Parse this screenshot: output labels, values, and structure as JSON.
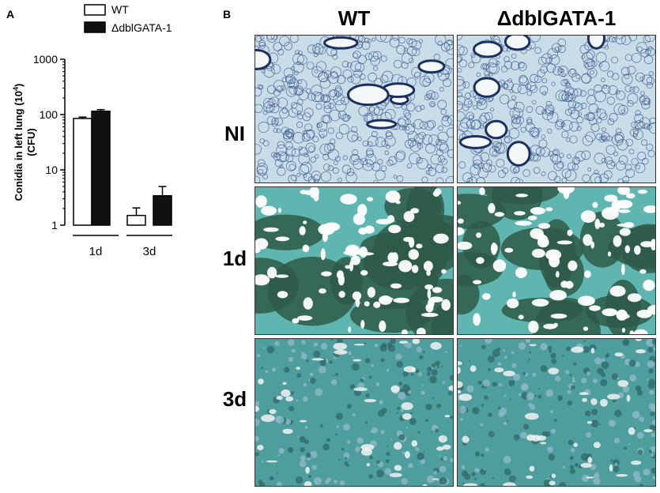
{
  "panel_a_letter": "A",
  "panel_b_letter": "B",
  "chart_data": {
    "type": "bar",
    "categories": [
      "1d",
      "3d"
    ],
    "series": [
      {
        "name": "WT",
        "values": [
          85,
          1.5
        ],
        "errors": [
          5,
          0.55
        ],
        "color": "#ffffff"
      },
      {
        "name": "ΔdblGATA-1",
        "values": [
          115,
          3.4
        ],
        "errors": [
          8,
          1.6
        ],
        "color": "#111111"
      }
    ],
    "title": "",
    "xlabel": "",
    "ylabel_line1": "Conidia in left lung (10",
    "ylabel_sup": "4",
    "ylabel_line1_end": ")",
    "ylabel_line2": "(CFU)",
    "y_scale": "log",
    "ylim": [
      1,
      1000
    ],
    "yticks": [
      {
        "value": 1,
        "label": "1"
      },
      {
        "value": 10,
        "label": "10"
      },
      {
        "value": 100,
        "label": "100"
      },
      {
        "value": 1000,
        "label": "1000"
      }
    ],
    "legend_position": "top",
    "grid": false
  },
  "micrograph_panel": {
    "columns": [
      "WT",
      "ΔdblGATA-1"
    ],
    "rows": [
      "NI",
      "1d",
      "3d"
    ]
  },
  "colors": {
    "ni_background": "#c9dde8",
    "ni_tissue": "#3a5a8c",
    "infected_tissue": "#2e5a48",
    "infected_cyan": "#5fb5b0",
    "airspace": "#f4f7f8"
  }
}
